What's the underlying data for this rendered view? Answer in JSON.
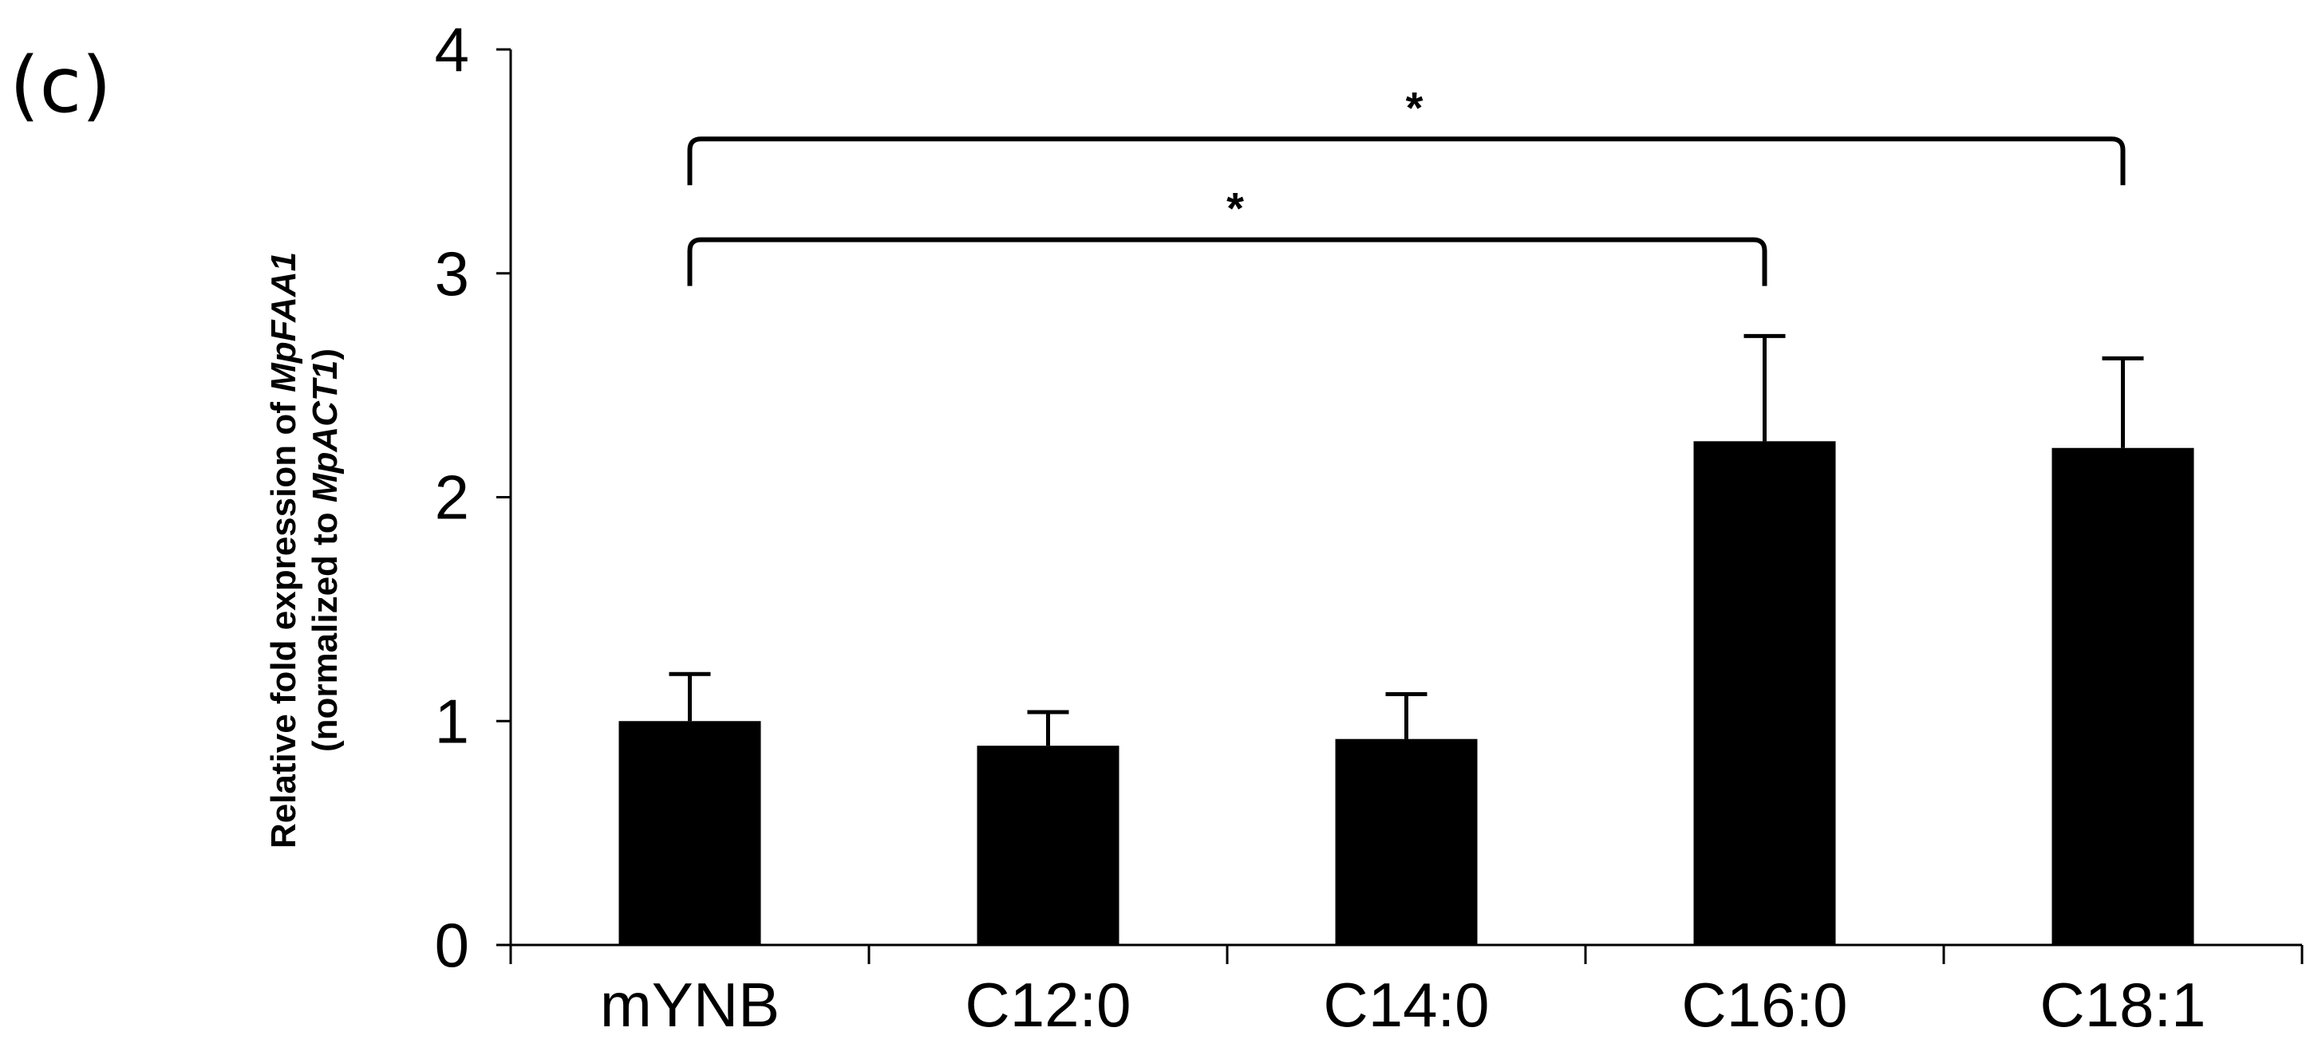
{
  "panel_label": "(c)",
  "chart_data": {
    "type": "bar",
    "categories": [
      "mYNB",
      "C12:0",
      "C14:0",
      "C16:0",
      "C18:1"
    ],
    "values": [
      1.0,
      0.89,
      0.92,
      2.25,
      2.22
    ],
    "errors": [
      0.21,
      0.15,
      0.2,
      0.47,
      0.4
    ],
    "ylim": [
      0,
      4
    ],
    "yticks": [
      0,
      1,
      2,
      3,
      4
    ],
    "ylabel_line1_prefix": "Relative fold expression of ",
    "ylabel_line1_gene": "MpFAA1",
    "ylabel_line2_open": "(normalized to ",
    "ylabel_line2_gene": "MpACT1",
    "ylabel_line2_close": ")",
    "grid": false,
    "significance": [
      {
        "from": "mYNB",
        "to": "C16:0",
        "label": "*",
        "level": 3.15
      },
      {
        "from": "mYNB",
        "to": "C18:1",
        "label": "*",
        "level": 3.6
      }
    ],
    "colors": {
      "bar": "#000000",
      "axis": "#000000"
    }
  }
}
